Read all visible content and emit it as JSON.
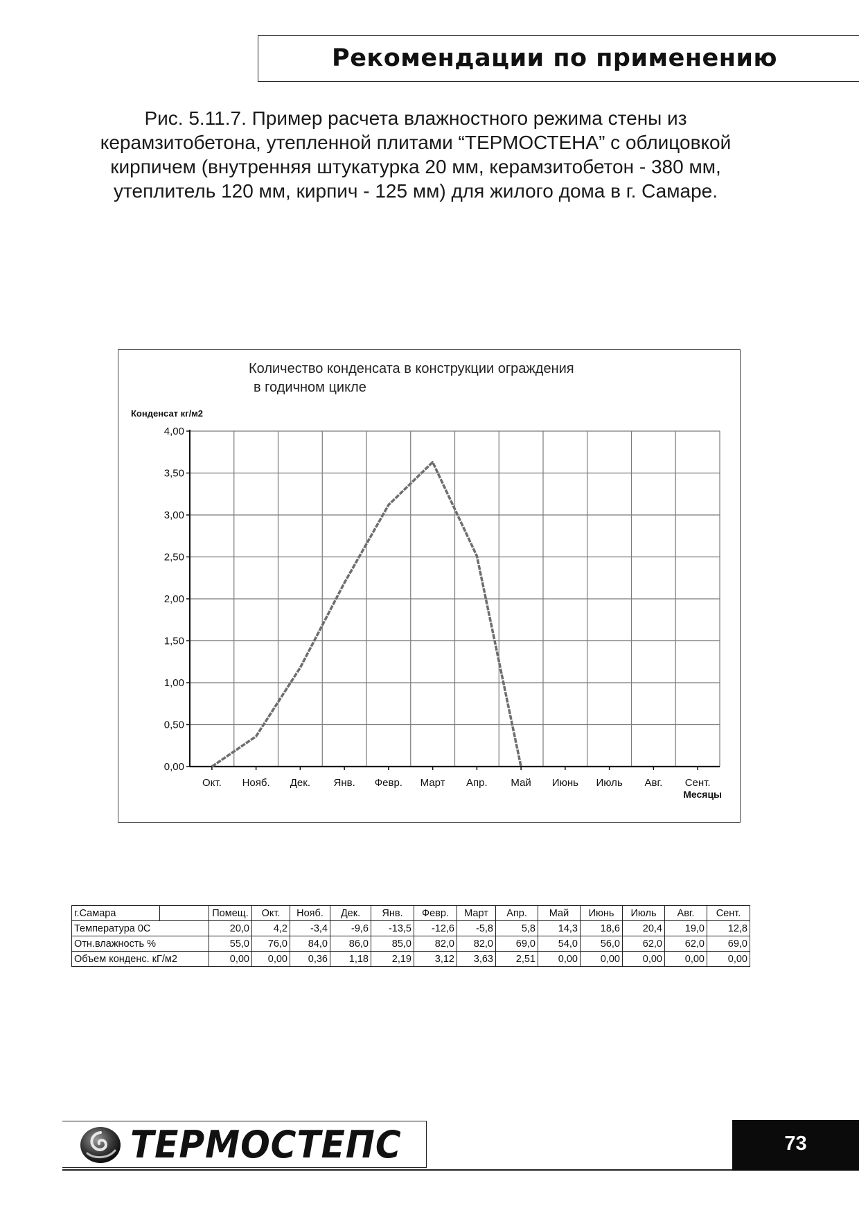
{
  "header": {
    "title": "Рекомендации по применению"
  },
  "caption": {
    "lines": [
      "Рис. 5.11.7. Пример расчета влажностного режима стены из",
      "керамзитобетона, утепленной плитами “ТЕРМОСТЕНА” с облицовкой",
      "кирпичем (внутренняя штукатурка 20 мм, керамзитобетон - 380 мм,",
      "утеплитель 120 мм, кирпич - 125 мм) для жилого дома в г. Самаре."
    ]
  },
  "chart_data": {
    "type": "line",
    "title_lines": [
      "Количество конденсата в конструкции ограждения",
      "в годичном цикле"
    ],
    "ylabel": "Конденсат кг/м2",
    "xlabel": "Месяцы",
    "categories": [
      "Окт.",
      "Нояб.",
      "Дек.",
      "Янв.",
      "Февр.",
      "Март",
      "Апр.",
      "Май",
      "Июнь",
      "Июль",
      "Авг.",
      "Сент."
    ],
    "yticks": [
      "0,00",
      "0,50",
      "1,00",
      "1,50",
      "2,00",
      "2,50",
      "3,00",
      "3,50",
      "4,00"
    ],
    "ylim": [
      0,
      4
    ],
    "grid": true,
    "series": [
      {
        "values": [
          0.0,
          0.36,
          1.18,
          2.19,
          3.12,
          3.63,
          2.51,
          0.0,
          null,
          null,
          null,
          null
        ]
      }
    ],
    "line_color": "#6e6e6e"
  },
  "table": {
    "header": [
      "г.Самара",
      "",
      "Помещ.",
      "Окт.",
      "Нояб.",
      "Дек.",
      "Янв.",
      "Февр.",
      "Март",
      "Апр.",
      "Май",
      "Июнь",
      "Июль",
      "Авг.",
      "Сент."
    ],
    "rows": [
      {
        "label": "Температура 0С",
        "values": [
          "20,0",
          "4,2",
          "-3,4",
          "-9,6",
          "-13,5",
          "-12,6",
          "-5,8",
          "5,8",
          "14,3",
          "18,6",
          "20,4",
          "19,0",
          "12,8"
        ]
      },
      {
        "label": "Отн.влажность %",
        "values": [
          "55,0",
          "76,0",
          "84,0",
          "86,0",
          "85,0",
          "82,0",
          "82,0",
          "69,0",
          "54,0",
          "56,0",
          "62,0",
          "62,0",
          "69,0"
        ]
      },
      {
        "label": "Объем конденс. кГ/м2",
        "values": [
          "0,00",
          "0,00",
          "0,36",
          "1,18",
          "2,19",
          "3,12",
          "3,63",
          "2,51",
          "0,00",
          "0,00",
          "0,00",
          "0,00",
          "0,00"
        ]
      }
    ]
  },
  "footer": {
    "logo_text": "ТЕРМОСТЕПС",
    "logo_icon": "swirl-logo-icon",
    "page_number": "73"
  }
}
